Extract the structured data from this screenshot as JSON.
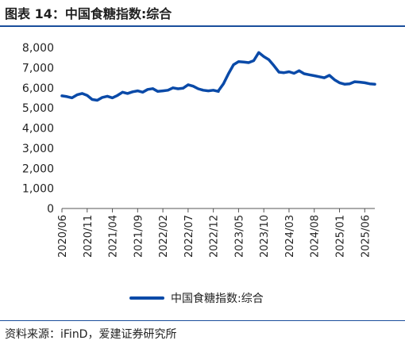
{
  "title": "图表 14：中国食糖指数:综合",
  "source": "资料来源：iFinD，爱建证券研究所",
  "chart_data": {
    "type": "line",
    "title": "",
    "xlabel": "",
    "ylabel": "",
    "ylim": [
      0,
      8000
    ],
    "yticks": [
      0,
      1000,
      2000,
      3000,
      4000,
      5000,
      6000,
      7000,
      8000
    ],
    "yticklabels": [
      "0",
      "1,000",
      "2,000",
      "3,000",
      "4,000",
      "5,000",
      "6,000",
      "7,000",
      "8,000"
    ],
    "xlim": [
      "2020-06",
      "2025-08"
    ],
    "xticks": [
      "2020-06",
      "2020-11",
      "2021-04",
      "2021-09",
      "2022-02",
      "2022-07",
      "2022-12",
      "2023-05",
      "2023-10",
      "2024-03",
      "2024-08",
      "2025-01",
      "2025-06"
    ],
    "xticklabels": [
      "2020/06",
      "2020/11",
      "2021/04",
      "2021/09",
      "2022/02",
      "2022/07",
      "2022/12",
      "2023/05",
      "2023/10",
      "2024/03",
      "2024/08",
      "2025/01",
      "2025/06"
    ],
    "grid": false,
    "legend_position": "bottom",
    "series": [
      {
        "name": "中国食糖指数:综合",
        "color": "#0a4aa8",
        "points": [
          [
            "2020-06",
            5600
          ],
          [
            "2020-07",
            5560
          ],
          [
            "2020-08",
            5500
          ],
          [
            "2020-09",
            5650
          ],
          [
            "2020-10",
            5720
          ],
          [
            "2020-11",
            5620
          ],
          [
            "2020-12",
            5420
          ],
          [
            "2021-01",
            5380
          ],
          [
            "2021-02",
            5520
          ],
          [
            "2021-03",
            5580
          ],
          [
            "2021-04",
            5500
          ],
          [
            "2021-05",
            5620
          ],
          [
            "2021-06",
            5780
          ],
          [
            "2021-07",
            5720
          ],
          [
            "2021-08",
            5800
          ],
          [
            "2021-09",
            5850
          ],
          [
            "2021-10",
            5780
          ],
          [
            "2021-11",
            5920
          ],
          [
            "2021-12",
            5960
          ],
          [
            "2022-01",
            5820
          ],
          [
            "2022-02",
            5850
          ],
          [
            "2022-03",
            5880
          ],
          [
            "2022-04",
            6000
          ],
          [
            "2022-05",
            5950
          ],
          [
            "2022-06",
            5980
          ],
          [
            "2022-07",
            6150
          ],
          [
            "2022-08",
            6080
          ],
          [
            "2022-09",
            5950
          ],
          [
            "2022-10",
            5880
          ],
          [
            "2022-11",
            5850
          ],
          [
            "2022-12",
            5880
          ],
          [
            "2022-13",
            5820
          ],
          [
            "2023-01",
            5850
          ],
          [
            "2023-02",
            6200
          ],
          [
            "2023-03",
            6700
          ],
          [
            "2023-04",
            7150
          ],
          [
            "2023-05",
            7300
          ],
          [
            "2023-06",
            7280
          ],
          [
            "2023-07",
            7250
          ],
          [
            "2023-08",
            7350
          ],
          [
            "2023-09",
            7750
          ],
          [
            "2023-10",
            7550
          ],
          [
            "2023-11",
            7400
          ],
          [
            "2023-12",
            7100
          ],
          [
            "2024-01",
            6780
          ],
          [
            "2024-02",
            6750
          ],
          [
            "2024-03",
            6800
          ],
          [
            "2024-04",
            6720
          ],
          [
            "2024-05",
            6850
          ],
          [
            "2024-06",
            6700
          ],
          [
            "2024-07",
            6650
          ],
          [
            "2024-08",
            6600
          ],
          [
            "2024-09",
            6550
          ],
          [
            "2024-10",
            6500
          ],
          [
            "2024-11",
            6620
          ],
          [
            "2024-12",
            6400
          ],
          [
            "2025-01",
            6250
          ],
          [
            "2025-02",
            6180
          ],
          [
            "2025-03",
            6200
          ],
          [
            "2025-04",
            6300
          ],
          [
            "2025-05",
            6280
          ],
          [
            "2025-06",
            6250
          ],
          [
            "2025-07",
            6200
          ],
          [
            "2025-08",
            6180
          ]
        ]
      }
    ]
  }
}
